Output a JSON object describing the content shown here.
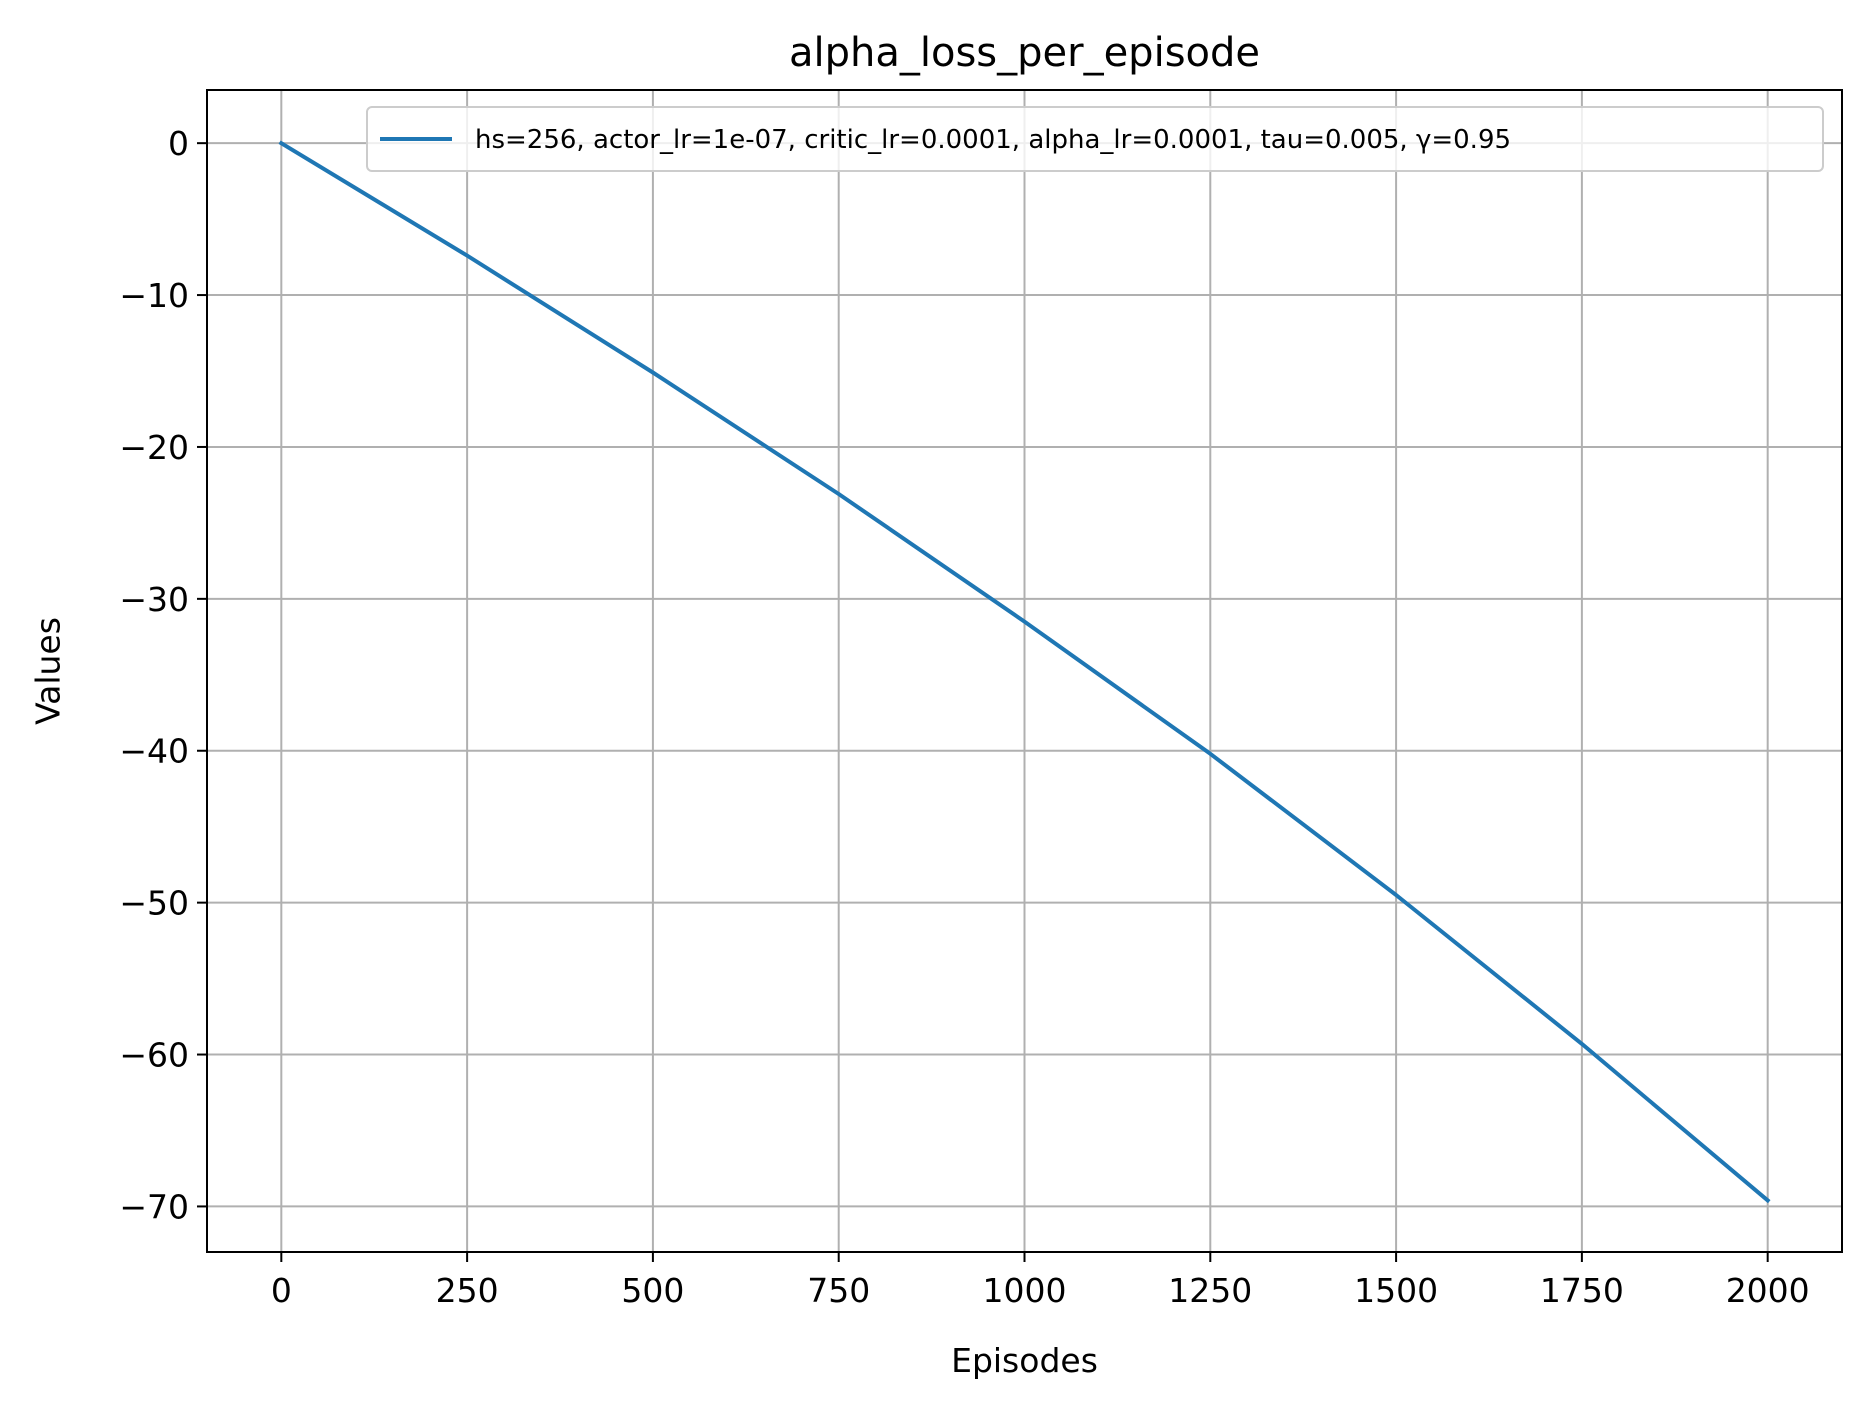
{
  "chart_data": {
    "type": "line",
    "title": "alpha_loss_per_episode",
    "xlabel": "Episodes",
    "ylabel": "Values",
    "xlim": [
      -100,
      2100
    ],
    "ylim": [
      -73,
      3.5
    ],
    "xticks": [
      0,
      250,
      500,
      750,
      1000,
      1250,
      1500,
      1750,
      2000
    ],
    "xtick_labels": [
      "0",
      "250",
      "500",
      "750",
      "1000",
      "1250",
      "1500",
      "1750",
      "2000"
    ],
    "yticks": [
      0,
      -10,
      -20,
      -30,
      -40,
      -50,
      -60,
      -70
    ],
    "ytick_labels": [
      "0",
      "−10",
      "−20",
      "−30",
      "−40",
      "−50",
      "−60",
      "−70"
    ],
    "grid": true,
    "legend_position": "top-right",
    "series": [
      {
        "name": "hs=256, actor_lr=1e-07, critic_lr=0.0001, alpha_lr=0.0001, tau=0.005, γ=0.95",
        "color": "#1f77b4",
        "x": [
          0,
          250,
          500,
          750,
          1000,
          1250,
          1500,
          1750,
          2000
        ],
        "values": [
          0,
          -7.4,
          -15.1,
          -23.1,
          -31.5,
          -40.2,
          -49.5,
          -59.3,
          -69.6
        ]
      }
    ]
  }
}
